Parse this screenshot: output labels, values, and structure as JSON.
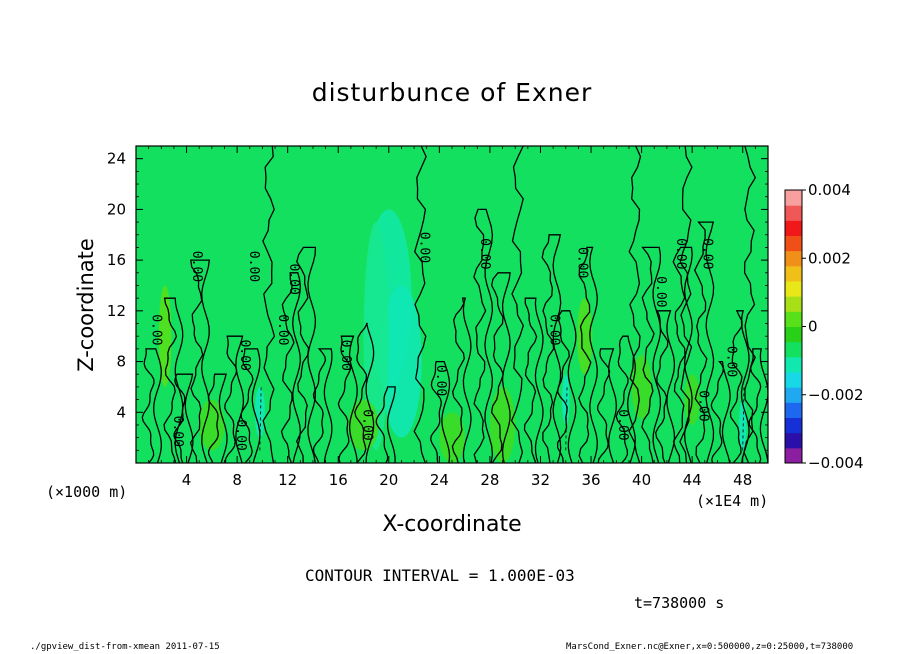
{
  "chart_data": {
    "type": "heatmap",
    "title": "disturbunce of Exner",
    "xlabel": "X-coordinate",
    "ylabel": "Z-coordinate",
    "x_unit_left": "(×1000 m)",
    "x_unit_right": "(×1E4 m)",
    "xlim": [
      0,
      50
    ],
    "ylim": [
      0,
      25
    ],
    "x_ticks": [
      4,
      8,
      12,
      16,
      20,
      24,
      28,
      32,
      36,
      40,
      44,
      48
    ],
    "y_ticks": [
      4,
      8,
      12,
      16,
      20,
      24
    ],
    "colorbar": {
      "ticks": [
        {
          "value": 0.004,
          "label": "0.004"
        },
        {
          "value": 0.002,
          "label": "0.002"
        },
        {
          "value": 0,
          "label": "0"
        },
        {
          "value": -0.002,
          "label": "−0.002"
        },
        {
          "value": -0.004,
          "label": "−0.004"
        }
      ],
      "colors": [
        "#8c1fa0",
        "#2a10a8",
        "#1630d8",
        "#1e68f0",
        "#20a8f0",
        "#18d8e8",
        "#10e8b0",
        "#14e060",
        "#28d018",
        "#58e018",
        "#a8e018",
        "#e8e818",
        "#f0c018",
        "#f09018",
        "#f05018",
        "#f01818",
        "#f05858",
        "#f8a0a0"
      ]
    },
    "contour_labels": [
      "0.00"
    ]
  },
  "contour_interval": "CONTOUR INTERVAL = 1.000E-03",
  "time_label": "t=738000 s",
  "footer_left": "./gpview_dist-from-xmean  2011-07-15",
  "footer_right": "MarsCond_Exner.nc@Exner,x=0:500000,z=0:25000,t=738000"
}
